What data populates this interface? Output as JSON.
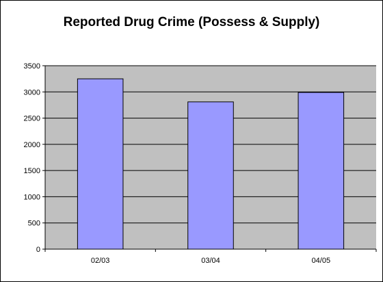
{
  "chart_data": {
    "type": "bar",
    "title": "Reported Drug Crime (Possess & Supply)",
    "categories": [
      "02/03",
      "03/04",
      "04/05"
    ],
    "values": [
      3250,
      2810,
      2990
    ],
    "ylim": [
      0,
      3500
    ],
    "yticks": [
      0,
      500,
      1000,
      1500,
      2000,
      2500,
      3000,
      3500
    ],
    "grid": true,
    "legend": false,
    "colors": {
      "bar_fill": "#9999ff",
      "bar_stroke": "#000000",
      "plot_background": "#c0c0c0",
      "gridline": "#000000"
    }
  }
}
